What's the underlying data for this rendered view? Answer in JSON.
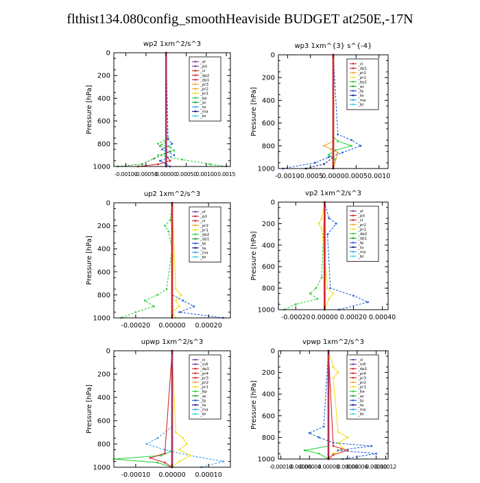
{
  "title": "flthist134.080config_smoothHeaviside  BUDGET at250E,-17N",
  "colors": {
    "purple": "#7a3fa0",
    "red": "#d42727",
    "orange": "#f5a623",
    "yellow": "#f2e01d",
    "green": "#2fcf3f",
    "darkgreen": "#20a030",
    "blue": "#1f5fd6",
    "lightblue": "#3aa0e8",
    "navy": "#1b1b8c",
    "cyan": "#2ed8e8"
  },
  "chart_data": [
    {
      "type": "line",
      "title": "wp2   1xm^2/s^3",
      "ylabel": "Pressure  [hPa]",
      "ylim": [
        1000,
        0
      ],
      "yticks": [
        0,
        200,
        400,
        600,
        800,
        1000
      ],
      "xlim": [
        -0.0013,
        0.0016
      ],
      "xticks": [
        -0.001,
        -0.0005,
        0,
        0.0005,
        0.001,
        0.0015
      ],
      "xtick_labels": [
        "-0.00100",
        "-0.00050",
        "0.00000",
        "0.00050",
        "0.00100",
        "0.0015"
      ],
      "xtick_style": "joined",
      "legend_position": "top-right",
      "legend": [
        "_sf",
        "_pd",
        "_cl",
        "_dp2",
        "_dp1",
        "_pr3",
        "_pr2",
        "_pr1",
        "_bp",
        "_ac",
        "_ta",
        "_ma",
        "_bt"
      ],
      "legend_colors": [
        "purple",
        "purple",
        "red",
        "red",
        "red",
        "orange",
        "orange",
        "yellow",
        "green",
        "darkgreen",
        "lightblue",
        "navy",
        "cyan"
      ],
      "series": [
        {
          "color": "green",
          "dashed": true,
          "pressure": [
            0,
            600,
            750,
            800,
            830,
            860,
            900,
            940,
            980,
            1000
          ],
          "values": [
            0,
            0,
            5e-05,
            -0.0002,
            0.0001,
            0.0002,
            -0.0002,
            0.0004,
            0.0011,
            0.0015
          ]
        },
        {
          "color": "darkgreen",
          "dashed": true,
          "pressure": [
            0,
            780,
            820,
            870,
            930,
            980,
            1000
          ],
          "values": [
            0,
            0,
            -0.00015,
            0.0001,
            -0.0003,
            -0.0006,
            -0.0012
          ]
        },
        {
          "color": "red",
          "dashed": false,
          "pressure": [
            0,
            900,
            950,
            980,
            1000
          ],
          "values": [
            0,
            0,
            0.0001,
            -0.0002,
            -0.0007
          ]
        },
        {
          "color": "blue",
          "dashed": true,
          "pressure": [
            0,
            760,
            800,
            850,
            900,
            950,
            1000
          ],
          "values": [
            0,
            5e-05,
            0.00015,
            -0.0001,
            0.0002,
            -0.00015,
            0.0001
          ]
        },
        {
          "color": "purple",
          "dashed": false,
          "pressure": [
            0,
            1000
          ],
          "values": [
            0,
            0
          ]
        }
      ]
    },
    {
      "type": "line",
      "title": "wp3   1xm^{3} s^{-4}",
      "ylabel": "Pressure  [hPa]",
      "ylim": [
        1000,
        0
      ],
      "yticks": [
        0,
        200,
        400,
        600,
        800,
        1000
      ],
      "xlim": [
        -0.0012,
        0.0012
      ],
      "xticks": [
        -0.001,
        -0.0005,
        0,
        0.0005,
        0.001
      ],
      "xtick_labels": [
        "-0.0010",
        "-0.0005",
        "0.0000",
        "0.0005",
        "0.0010"
      ],
      "legend_position": "top-right",
      "legend": [
        "_cl",
        "_dp1",
        "_pr2",
        "_pr1",
        "_bp1",
        "_ac",
        "_tp",
        "_ta",
        "_ma",
        "_bt"
      ],
      "legend_colors": [
        "red",
        "red",
        "orange",
        "yellow",
        "green",
        "darkgreen",
        "blue",
        "navy",
        "lightblue",
        "cyan"
      ],
      "series": [
        {
          "color": "green",
          "dashed": false,
          "pressure": [
            0,
            720,
            760,
            800,
            840,
            880,
            920,
            1000
          ],
          "values": [
            0,
            0,
            0.0001,
            0.0004,
            5e-05,
            -0.0001,
            5e-05,
            0
          ]
        },
        {
          "color": "orange",
          "dashed": false,
          "pressure": [
            0,
            760,
            800,
            830,
            860,
            1000
          ],
          "values": [
            0,
            0,
            -0.0002,
            -5e-05,
            0.0001,
            0
          ]
        },
        {
          "color": "blue",
          "dashed": true,
          "pressure": [
            0,
            700,
            750,
            800,
            860,
            900,
            950,
            1000
          ],
          "values": [
            0,
            0.0001,
            0.0004,
            0.0006,
            0.0002,
            -0.0001,
            -0.0004,
            -0.0011
          ]
        },
        {
          "color": "navy",
          "dashed": true,
          "pressure": [
            0,
            900,
            960,
            1000
          ],
          "values": [
            0,
            0,
            -0.0002,
            -0.0006
          ]
        },
        {
          "color": "red",
          "dashed": false,
          "pressure": [
            0,
            1000
          ],
          "values": [
            0,
            0
          ]
        }
      ]
    },
    {
      "type": "line",
      "title": "up2   1xm^2/s^3",
      "ylabel": "Pressure  [hPa]",
      "ylim": [
        1000,
        0
      ],
      "yticks": [
        0,
        200,
        400,
        600,
        800,
        1000
      ],
      "xlim": [
        -0.00032,
        0.00032
      ],
      "xticks": [
        -0.0002,
        0,
        0.0002
      ],
      "xtick_labels": [
        "-0.00020",
        "0.00000",
        "0.00020"
      ],
      "legend_position": "top-right",
      "legend": [
        "_sf",
        "_pd",
        "_cl",
        "_pr2",
        "_pr1",
        "_dp2",
        "_dp1",
        "_tp",
        "_ta",
        "_ma",
        "_bt"
      ],
      "legend_colors": [
        "purple",
        "red",
        "red",
        "orange",
        "yellow",
        "green",
        "darkgreen",
        "blue",
        "navy",
        "lightblue",
        "cyan"
      ],
      "series": [
        {
          "color": "green",
          "dashed": true,
          "pressure": [
            0,
            150,
            200,
            250,
            400,
            750,
            800,
            850,
            900,
            950,
            1000
          ],
          "values": [
            0,
            -1e-05,
            -4e-05,
            -2e-05,
            0,
            -3e-05,
            -8e-05,
            -0.00015,
            -0.0001,
            -0.0002,
            -0.00028
          ]
        },
        {
          "color": "yellow",
          "dashed": false,
          "pressure": [
            0,
            750,
            800,
            850,
            900,
            950,
            1000
          ],
          "values": [
            0,
            2e-05,
            5e-05,
            2e-05,
            4e-05,
            0,
            2e-05
          ]
        },
        {
          "color": "blue",
          "dashed": true,
          "pressure": [
            0,
            800,
            850,
            900,
            950,
            1000
          ],
          "values": [
            0,
            0,
            6e-05,
            0.00012,
            4e-05,
            0.00028
          ]
        },
        {
          "color": "red",
          "dashed": false,
          "pressure": [
            0,
            1000
          ],
          "values": [
            0,
            0
          ]
        }
      ]
    },
    {
      "type": "line",
      "title": "vp2   1xm^2/s^3",
      "ylabel": "Pressure  [hPa]",
      "ylim": [
        1000,
        0
      ],
      "yticks": [
        0,
        200,
        400,
        600,
        800,
        1000
      ],
      "xlim": [
        -0.00032,
        0.00044
      ],
      "xticks": [
        -0.0002,
        0,
        0.0002,
        0.0004
      ],
      "xtick_labels": [
        "-0.00020",
        "0.00000",
        "0.00020",
        "0.00040"
      ],
      "legend_position": "top-right",
      "legend": [
        "_sf",
        "_pd",
        "_cl",
        "_pr2",
        "_pr1",
        "_dp2",
        "_dp1",
        "_tp",
        "_ta",
        "_ma",
        "_bt"
      ],
      "legend_colors": [
        "purple",
        "red",
        "red",
        "orange",
        "yellow",
        "green",
        "darkgreen",
        "blue",
        "navy",
        "lightblue",
        "cyan"
      ],
      "series": [
        {
          "color": "green",
          "dashed": true,
          "pressure": [
            0,
            700,
            800,
            850,
            900,
            950,
            1000
          ],
          "values": [
            0,
            -2e-05,
            -6e-05,
            -0.0001,
            -5e-05,
            -0.0002,
            -0.00028
          ]
        },
        {
          "color": "yellow",
          "dashed": false,
          "pressure": [
            0,
            150,
            200,
            250,
            800,
            850,
            900,
            1000
          ],
          "values": [
            0,
            -2e-05,
            -4e-05,
            -2e-05,
            2e-05,
            6e-05,
            3e-05,
            0
          ]
        },
        {
          "color": "blue",
          "dashed": true,
          "pressure": [
            0,
            150,
            200,
            300,
            800,
            870,
            930,
            1000
          ],
          "values": [
            0,
            3e-05,
            8e-05,
            2e-05,
            4e-05,
            0.0002,
            0.0003,
            0.0001
          ]
        },
        {
          "color": "red",
          "dashed": false,
          "pressure": [
            0,
            1000
          ],
          "values": [
            0,
            0
          ]
        }
      ]
    },
    {
      "type": "line",
      "title": "upwp   1xm^2/s^3",
      "ylabel": "Pressure  [hPa]",
      "ylim": [
        1000,
        0
      ],
      "yticks": [
        0,
        200,
        400,
        600,
        800,
        1000
      ],
      "xlim": [
        -0.00016,
        0.00016
      ],
      "xticks": [
        -0.0001,
        0,
        0.0001
      ],
      "xtick_labels": [
        "-0.00010",
        "0.00000",
        "0.00010"
      ],
      "legend_position": "top-right",
      "legend": [
        "_cl",
        "_mfl",
        "_dp1",
        "_pr4",
        "_pr3",
        "_pr2",
        "_pr1",
        "_bp",
        "_ac",
        "_tp",
        "_ta",
        "_ma",
        "_bt"
      ],
      "legend_colors": [
        "purple",
        "purple",
        "red",
        "red",
        "red",
        "orange",
        "yellow",
        "green",
        "darkgreen",
        "blue",
        "navy",
        "lightblue",
        "cyan"
      ],
      "series": [
        {
          "color": "lightblue",
          "dashed": true,
          "pressure": [
            0,
            650,
            750,
            800,
            850,
            900,
            950,
            1000
          ],
          "values": [
            0,
            0,
            -4e-05,
            -7e-05,
            -2e-05,
            5e-05,
            0.00014,
            8e-05
          ]
        },
        {
          "color": "yellow",
          "dashed": false,
          "pressure": [
            0,
            700,
            750,
            800,
            850,
            900,
            950,
            1000
          ],
          "values": [
            0,
            1e-05,
            3e-05,
            4e-05,
            2e-05,
            5e-05,
            2e-05,
            0
          ]
        },
        {
          "color": "green",
          "dashed": false,
          "pressure": [
            0,
            860,
            900,
            930,
            960,
            1000
          ],
          "values": [
            0,
            0,
            -3e-05,
            -0.00016,
            -4e-05,
            0
          ]
        },
        {
          "color": "red",
          "dashed": false,
          "pressure": [
            0,
            880,
            920,
            960,
            1000
          ],
          "values": [
            0,
            -2e-05,
            -6e-05,
            -2e-05,
            0
          ]
        },
        {
          "color": "purple",
          "dashed": false,
          "pressure": [
            0,
            1000
          ],
          "values": [
            0,
            0
          ]
        }
      ]
    },
    {
      "type": "line",
      "title": "vpwp   1xm^2/s^3",
      "ylabel": "Pressure  [hPa]",
      "ylim": [
        1000,
        0
      ],
      "yticks": [
        0,
        200,
        400,
        600,
        800,
        1000
      ],
      "xlim": [
        -0.000105,
        0.000125
      ],
      "xticks": [
        -0.0001,
        -6e-05,
        -4e-05,
        0,
        4e-05,
        6e-05,
        0.0001,
        0.00012
      ],
      "xtick_labels": [
        "-0.00010",
        "-0.00006",
        "-0.00004",
        "0.00000",
        "0.00004",
        "0.00006",
        "0.00010",
        "0.00012"
      ],
      "xtick_style": "joined",
      "legend_position": "top-right",
      "legend": [
        "_cl",
        "_mfl",
        "_dp1",
        "_pr4",
        "_pr3",
        "_pr2",
        "_pr1",
        "_ba",
        "_ac",
        "_tp",
        "_ta",
        "_ma",
        "_bt"
      ],
      "legend_colors": [
        "purple",
        "purple",
        "red",
        "red",
        "red",
        "orange",
        "yellow",
        "green",
        "darkgreen",
        "blue",
        "navy",
        "lightblue",
        "cyan"
      ],
      "series": [
        {
          "color": "yellow",
          "dashed": false,
          "pressure": [
            0,
            150,
            200,
            250,
            750,
            800,
            850,
            900,
            950,
            1000
          ],
          "values": [
            0,
            1e-05,
            2e-05,
            1e-05,
            2e-05,
            4e-05,
            2e-05,
            3e-05,
            1e-05,
            0
          ]
        },
        {
          "color": "blue",
          "dashed": true,
          "pressure": [
            0,
            700,
            760,
            800,
            850,
            880,
            920,
            950,
            1000
          ],
          "values": [
            0,
            -1e-05,
            -4e-05,
            -2e-05,
            1e-05,
            9e-05,
            2e-05,
            0.0001,
            3e-05
          ]
        },
        {
          "color": "green",
          "dashed": false,
          "pressure": [
            0,
            880,
            920,
            950,
            1000
          ],
          "values": [
            0,
            0,
            -5e-05,
            -2e-05,
            0
          ]
        },
        {
          "color": "red",
          "dashed": false,
          "pressure": [
            0,
            880,
            920,
            960,
            1000
          ],
          "values": [
            0,
            1e-05,
            4e-05,
            1e-05,
            0
          ]
        },
        {
          "color": "purple",
          "dashed": false,
          "pressure": [
            0,
            1000
          ],
          "values": [
            0,
            0
          ]
        }
      ]
    }
  ]
}
